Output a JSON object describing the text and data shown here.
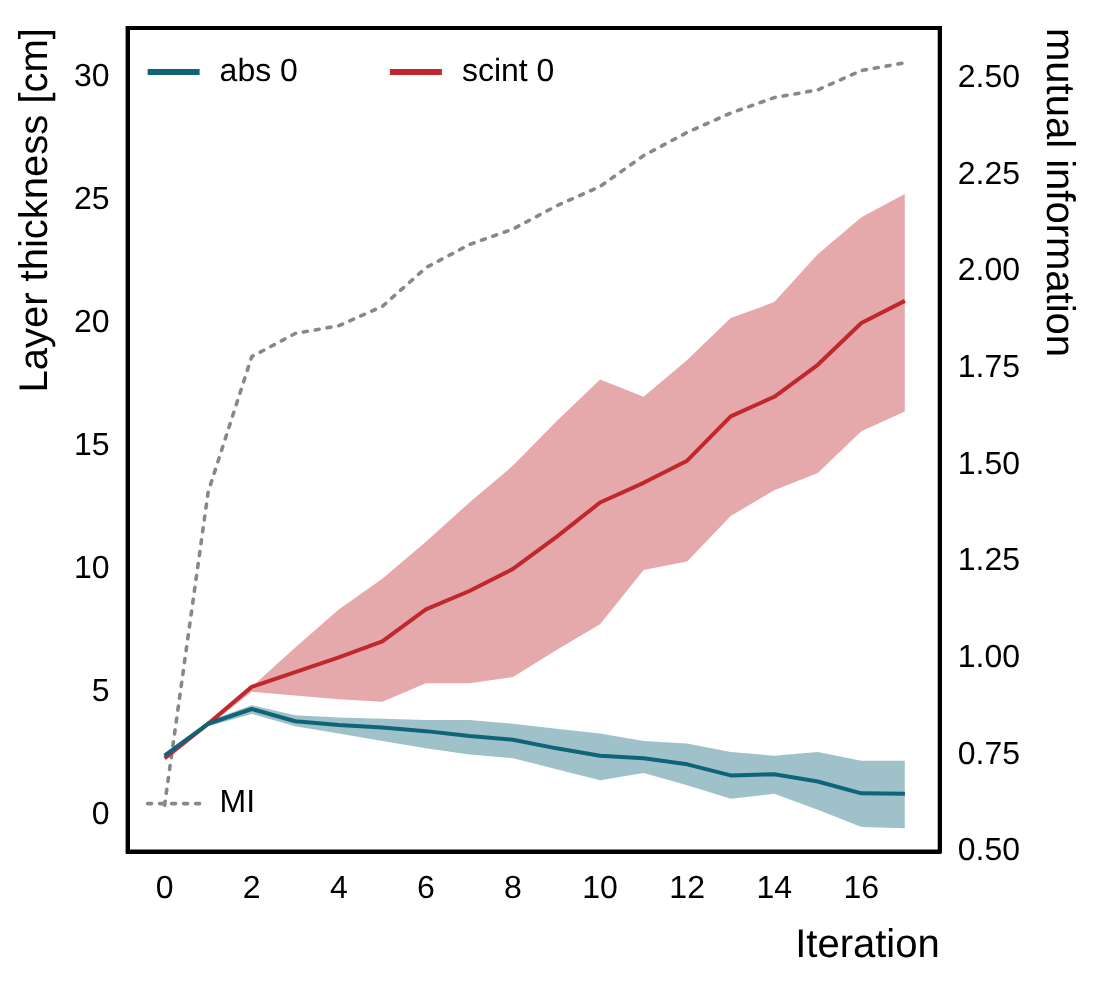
{
  "chart_data": {
    "type": "line",
    "xlabel": "Iteration",
    "ylabel": "Layer thickness [cm]",
    "y2label": "mutual information",
    "x": [
      0,
      1,
      2,
      3,
      4,
      5,
      6,
      7,
      8,
      9,
      10,
      11,
      12,
      13,
      14,
      15,
      16,
      17
    ],
    "xlim": [
      -0.85,
      17.8
    ],
    "xticks": [
      0,
      2,
      4,
      6,
      8,
      10,
      12,
      14,
      16
    ],
    "ylim": [
      -1.5,
      32
    ],
    "yticks": [
      0,
      5,
      10,
      15,
      20,
      25,
      30
    ],
    "y2lim": [
      0.5,
      2.63
    ],
    "y2ticks": [
      {
        "value": 0.5,
        "label": "0.50"
      },
      {
        "value": 0.75,
        "label": "0.75"
      },
      {
        "value": 1,
        "label": "1.00"
      },
      {
        "value": 1.25,
        "label": "1.25"
      },
      {
        "value": 1.5,
        "label": "1.50"
      },
      {
        "value": 1.75,
        "label": "1.75"
      },
      {
        "value": 2,
        "label": "2.00"
      },
      {
        "value": 2.25,
        "label": "2.25"
      },
      {
        "value": 2.5,
        "label": "2.50"
      }
    ],
    "grid": false,
    "legend": "top left",
    "marker": "none",
    "series": [
      {
        "name": "abs 0",
        "color": "#0f6577",
        "values": [
          2.4,
          3.7,
          4.3,
          3.8,
          3.65,
          3.55,
          3.4,
          3.2,
          3.05,
          2.7,
          2.4,
          2.3,
          2.05,
          1.6,
          1.65,
          1.35,
          0.87,
          0.85
        ],
        "lower": [
          2.3,
          3.6,
          4.1,
          3.6,
          3.3,
          3.0,
          2.7,
          2.45,
          2.3,
          1.85,
          1.4,
          1.7,
          1.2,
          0.65,
          0.85,
          0.2,
          -0.5,
          -0.55
        ],
        "upper": [
          2.5,
          3.8,
          4.45,
          4.05,
          3.95,
          3.9,
          3.85,
          3.85,
          3.7,
          3.5,
          3.3,
          3.0,
          2.9,
          2.55,
          2.4,
          2.55,
          2.2,
          2.2
        ]
      },
      {
        "name": "scint 0",
        "color": "#c0282d",
        "values": [
          2.3,
          3.7,
          5.2,
          5.8,
          6.4,
          7.05,
          8.35,
          9.1,
          10.0,
          11.3,
          12.7,
          13.5,
          14.4,
          16.2,
          17.0,
          18.3,
          20.0,
          20.9
        ],
        "lower": [
          2.2,
          3.6,
          5.0,
          4.85,
          4.7,
          4.6,
          5.35,
          5.35,
          5.6,
          6.7,
          7.75,
          9.95,
          10.3,
          12.15,
          13.2,
          13.9,
          15.6,
          16.4
        ],
        "upper": [
          2.4,
          3.8,
          5.2,
          6.8,
          8.35,
          9.6,
          11.1,
          12.7,
          14.2,
          16.0,
          17.7,
          17.0,
          18.5,
          20.2,
          20.85,
          22.8,
          24.3,
          25.25
        ]
      },
      {
        "name": "MI",
        "color": "#888888",
        "axis": "y2",
        "line_style": "dotted",
        "values": [
          0.62,
          1.43,
          1.78,
          1.84,
          1.86,
          1.91,
          2.01,
          2.07,
          2.11,
          2.17,
          2.22,
          2.3,
          2.36,
          2.41,
          2.45,
          2.47,
          2.52,
          2.54
        ]
      }
    ]
  }
}
